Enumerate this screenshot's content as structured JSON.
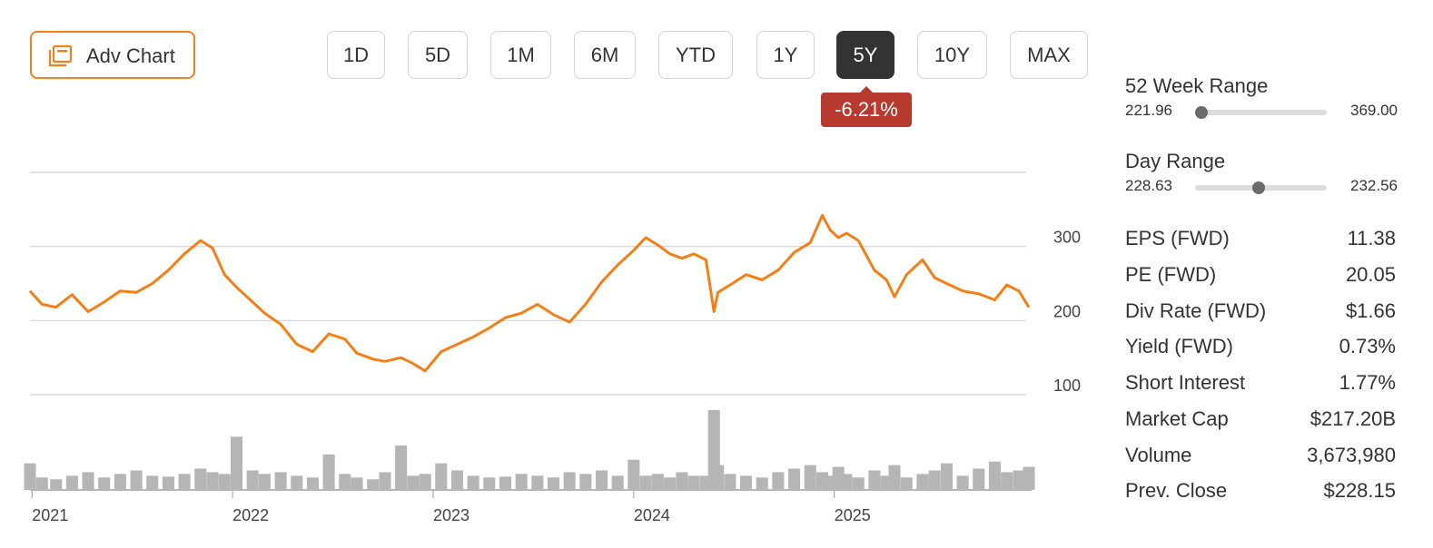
{
  "toolbar": {
    "adv_chart_label": "Adv Chart",
    "ranges": [
      "1D",
      "5D",
      "1M",
      "6M",
      "YTD",
      "1Y",
      "5Y",
      "10Y",
      "MAX"
    ],
    "active_range": "5Y",
    "change": "-6.21%",
    "colors": {
      "accent": "#f08020",
      "active_bg": "#333333",
      "negative": "#b83a2e"
    }
  },
  "ranges": {
    "week52": {
      "title": "52 Week Range",
      "low": "221.96",
      "high": "369.00",
      "position": 0.05
    },
    "day": {
      "title": "Day Range",
      "low": "228.63",
      "high": "232.56",
      "position": 0.48
    }
  },
  "stats": [
    {
      "label": "EPS (FWD)",
      "value": "11.38"
    },
    {
      "label": "PE (FWD)",
      "value": "20.05"
    },
    {
      "label": "Div Rate (FWD)",
      "value": "$1.66"
    },
    {
      "label": "Yield (FWD)",
      "value": "0.73%"
    },
    {
      "label": "Short Interest",
      "value": "1.77%"
    },
    {
      "label": "Market Cap",
      "value": "$217.20B"
    },
    {
      "label": "Volume",
      "value": "3,673,980"
    },
    {
      "label": "Prev. Close",
      "value": "$228.15"
    }
  ],
  "chart_data": {
    "type": "line",
    "line_color": "#f57f17",
    "volume_color": "#b5b5b5",
    "grid": true,
    "x_tick_labels": [
      "2021",
      "2022",
      "2023",
      "2024",
      "2025"
    ],
    "x_ticks": [
      2021.0,
      2022.0,
      2023.0,
      2024.0,
      2025.0
    ],
    "y_tick_labels": [
      "300",
      "200",
      "100"
    ],
    "y_ticks": [
      300,
      200,
      100
    ],
    "xlim": [
      2020.99,
      2025.97
    ],
    "ylim": [
      100,
      400
    ],
    "x": [
      2020.99,
      2021.05,
      2021.12,
      2021.2,
      2021.28,
      2021.36,
      2021.44,
      2021.52,
      2021.6,
      2021.68,
      2021.76,
      2021.84,
      2021.9,
      2021.96,
      2022.02,
      2022.1,
      2022.16,
      2022.24,
      2022.32,
      2022.4,
      2022.48,
      2022.56,
      2022.62,
      2022.7,
      2022.76,
      2022.84,
      2022.9,
      2022.96,
      2023.04,
      2023.12,
      2023.2,
      2023.28,
      2023.36,
      2023.44,
      2023.52,
      2023.6,
      2023.68,
      2023.76,
      2023.84,
      2023.92,
      2024.0,
      2024.06,
      2024.12,
      2024.18,
      2024.24,
      2024.3,
      2024.36,
      2024.4,
      2024.42,
      2024.48,
      2024.56,
      2024.64,
      2024.72,
      2024.8,
      2024.88,
      2024.94,
      2024.98,
      2025.02,
      2025.06,
      2025.12,
      2025.2,
      2025.26,
      2025.3,
      2025.36,
      2025.44,
      2025.5,
      2025.56,
      2025.64,
      2025.72,
      2025.8,
      2025.86,
      2025.92,
      2025.97
    ],
    "y": [
      240,
      222,
      218,
      235,
      212,
      225,
      240,
      238,
      250,
      268,
      290,
      308,
      298,
      262,
      245,
      225,
      210,
      195,
      168,
      158,
      182,
      175,
      156,
      148,
      145,
      150,
      142,
      132,
      158,
      168,
      178,
      190,
      204,
      210,
      222,
      208,
      198,
      222,
      252,
      275,
      295,
      312,
      302,
      290,
      284,
      290,
      282,
      212,
      238,
      248,
      262,
      255,
      268,
      292,
      305,
      342,
      322,
      312,
      318,
      308,
      268,
      255,
      232,
      262,
      282,
      258,
      250,
      240,
      236,
      228,
      248,
      240,
      218
    ],
    "volume": [
      30,
      14,
      12,
      16,
      20,
      14,
      18,
      22,
      16,
      15,
      18,
      24,
      20,
      18,
      60,
      22,
      18,
      20,
      16,
      14,
      40,
      18,
      14,
      12,
      20,
      50,
      16,
      18,
      30,
      22,
      16,
      14,
      15,
      18,
      16,
      14,
      20,
      18,
      22,
      16,
      34,
      16,
      18,
      14,
      20,
      16,
      16,
      90,
      28,
      18,
      16,
      14,
      20,
      24,
      28,
      20,
      16,
      26,
      18,
      14,
      22,
      16,
      28,
      14,
      18,
      22,
      30,
      16,
      24,
      32,
      20,
      22,
      26
    ]
  }
}
